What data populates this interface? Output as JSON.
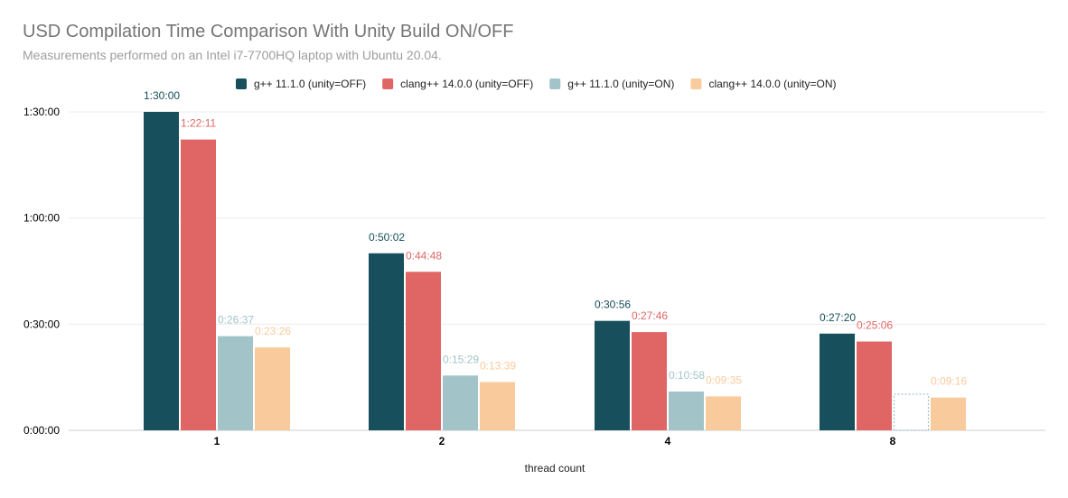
{
  "header": {
    "title": "USD Compilation Time Comparison With Unity Build ON/OFF",
    "subtitle": "Measurements performed on an Intel i7-7700HQ laptop with Ubuntu 20.04."
  },
  "colors": {
    "gpp_off": "#174f5c",
    "clang_off": "#e06666",
    "gpp_on": "#a2c4c9",
    "clang_on": "#f9cb9c",
    "axis_text": "#000000",
    "grid": "#ebebeb"
  },
  "chart_data": {
    "type": "bar",
    "title": "USD Compilation Time Comparison With Unity Build ON/OFF",
    "subtitle": "Measurements performed on an Intel i7-7700HQ laptop with Ubuntu 20.04.",
    "xlabel": "thread count",
    "ylabel": "",
    "categories": [
      "1",
      "2",
      "4",
      "8"
    ],
    "y_unit": "seconds",
    "ylim": [
      0,
      5400
    ],
    "yticks": [
      0,
      1800,
      3600,
      5400
    ],
    "ytick_labels": [
      "0:00:00",
      "0:30:00",
      "1:00:00",
      "1:30:00"
    ],
    "grid": true,
    "legend_position": "top",
    "series": [
      {
        "name": "g++ 11.1.0 (unity=OFF)",
        "color_key": "gpp_off",
        "values": [
          5400,
          3002,
          1856,
          1640
        ],
        "labels": [
          "1:30:00",
          "0:50:02",
          "0:30:56",
          "0:27:20"
        ]
      },
      {
        "name": "clang++ 14.0.0 (unity=OFF)",
        "color_key": "clang_off",
        "values": [
          4931,
          2688,
          1666,
          1506
        ],
        "labels": [
          "1:22:11",
          "0:44:48",
          "0:27:46",
          "0:25:06"
        ]
      },
      {
        "name": "g++ 11.1.0 (unity=ON)",
        "color_key": "gpp_on",
        "values": [
          1597,
          929,
          658,
          null
        ],
        "labels": [
          "0:26:37",
          "0:15:29",
          "0:10:58",
          ""
        ]
      },
      {
        "name": "clang++ 14.0.0 (unity=ON)",
        "color_key": "clang_on",
        "values": [
          1406,
          819,
          575,
          556
        ],
        "labels": [
          "0:23:26",
          "0:13:39",
          "0:09:35",
          "0:09:16"
        ]
      }
    ],
    "annotations": [
      {
        "note": "missing value",
        "series": "g++ 11.1.0 (unity=ON)",
        "category": "8"
      }
    ]
  }
}
